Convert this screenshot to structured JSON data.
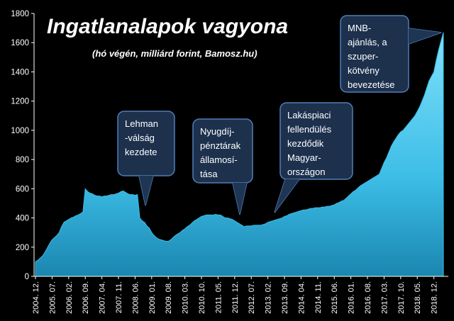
{
  "chart_data": {
    "type": "area",
    "title": "Ingatlanalapok vagyona",
    "subtitle": "(hó végén, milliárd forint, Bamosz.hu)",
    "categories": [
      "2004. 12.",
      null,
      null,
      null,
      null,
      null,
      null,
      "2005. 07.",
      null,
      null,
      null,
      null,
      null,
      null,
      "2006. 02.",
      null,
      null,
      null,
      null,
      null,
      null,
      "2006. 09.",
      null,
      null,
      null,
      null,
      null,
      null,
      "2007. 04.",
      null,
      null,
      null,
      null,
      null,
      null,
      "2007. 11.",
      null,
      null,
      null,
      null,
      null,
      null,
      "2008. 06.",
      null,
      null,
      null,
      null,
      null,
      null,
      "2009. 01.",
      null,
      null,
      null,
      null,
      null,
      null,
      "2009. 08.",
      null,
      null,
      null,
      null,
      null,
      null,
      "2010. 03.",
      null,
      null,
      null,
      null,
      null,
      null,
      "2010. 10.",
      null,
      null,
      null,
      null,
      null,
      null,
      "2011. 05.",
      null,
      null,
      null,
      null,
      null,
      null,
      "2011. 12.",
      null,
      null,
      null,
      null,
      null,
      null,
      "2012. 07.",
      null,
      null,
      null,
      null,
      null,
      null,
      "2013. 02.",
      null,
      null,
      null,
      null,
      null,
      null,
      "2013. 09.",
      null,
      null,
      null,
      null,
      null,
      null,
      "2014. 04.",
      null,
      null,
      null,
      null,
      null,
      null,
      "2014. 11.",
      null,
      null,
      null,
      null,
      null,
      null,
      "2015. 06.",
      null,
      null,
      null,
      null,
      null,
      null,
      "2016. 01.",
      null,
      null,
      null,
      null,
      null,
      null,
      "2016. 08.",
      null,
      null,
      null,
      null,
      null,
      null,
      "2017. 03.",
      null,
      null,
      null,
      null,
      null,
      null,
      "2017. 10.",
      null,
      null,
      null,
      null,
      null,
      null,
      "2018. 05.",
      null,
      null,
      null,
      null,
      null,
      null,
      "2018. 12.",
      null,
      null,
      null,
      null
    ],
    "values": [
      100,
      110,
      125,
      140,
      165,
      195,
      225,
      250,
      265,
      280,
      300,
      340,
      370,
      380,
      390,
      400,
      405,
      415,
      420,
      430,
      440,
      600,
      580,
      570,
      565,
      555,
      550,
      550,
      545,
      550,
      550,
      555,
      560,
      560,
      565,
      570,
      580,
      585,
      575,
      565,
      560,
      560,
      555,
      560,
      400,
      380,
      370,
      345,
      330,
      300,
      280,
      265,
      255,
      250,
      245,
      240,
      240,
      250,
      265,
      280,
      290,
      300,
      315,
      325,
      340,
      350,
      365,
      380,
      390,
      400,
      410,
      415,
      420,
      420,
      420,
      420,
      425,
      420,
      420,
      410,
      400,
      400,
      395,
      390,
      380,
      370,
      360,
      350,
      340,
      345,
      345,
      345,
      350,
      350,
      350,
      350,
      355,
      360,
      370,
      375,
      380,
      385,
      390,
      395,
      400,
      410,
      415,
      425,
      430,
      435,
      440,
      445,
      450,
      455,
      455,
      460,
      465,
      465,
      470,
      470,
      470,
      475,
      475,
      480,
      480,
      485,
      490,
      500,
      505,
      515,
      520,
      535,
      550,
      565,
      580,
      590,
      605,
      620,
      630,
      640,
      650,
      660,
      670,
      680,
      690,
      700,
      740,
      780,
      810,
      850,
      890,
      920,
      945,
      970,
      990,
      1000,
      1020,
      1040,
      1060,
      1080,
      1100,
      1130,
      1160,
      1200,
      1240,
      1290,
      1340,
      1370,
      1400,
      1480,
      1550,
      1610,
      1670
    ],
    "color": "#3cbde6",
    "ylim": [
      0,
      1800
    ],
    "yticks": [
      0,
      200,
      400,
      600,
      800,
      1000,
      1200,
      1400,
      1600,
      1800
    ],
    "annotations": [
      {
        "lines": [
          "Lehman",
          "-válság",
          "kezdete"
        ]
      },
      {
        "lines": [
          "Nyugdíj-",
          "pénztárak",
          "államosí-",
          "tása"
        ]
      },
      {
        "lines": [
          "Lakáspiaci",
          "fellendülés",
          "kezdődik",
          "Magyar-",
          "országon"
        ]
      },
      {
        "lines": [
          "MNB-",
          "ajánlás, a",
          "szuper-",
          "kötvény",
          "bevezetése"
        ]
      }
    ]
  }
}
